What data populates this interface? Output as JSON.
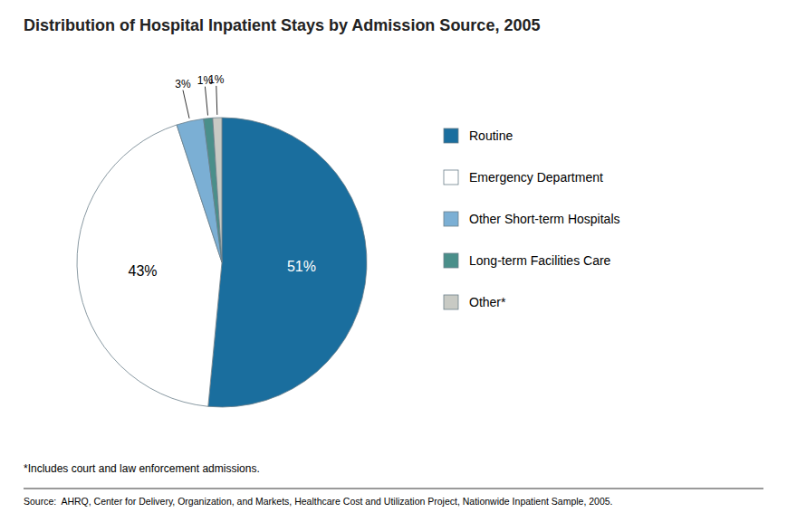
{
  "chart_data": {
    "type": "pie",
    "title": "Distribution of Hospital Inpatient Stays by Admission Source, 2005",
    "categories": [
      "Routine",
      "Emergency Department",
      "Other Short-term Hospitals",
      "Long-term Facilities Care",
      "Other*"
    ],
    "values": [
      51,
      43,
      3,
      1,
      1
    ],
    "value_labels": [
      "51%",
      "43%",
      "3%",
      "1%",
      "1%"
    ],
    "colors": [
      "#1a6e9e",
      "#ffffff",
      "#7bafd4",
      "#4a8f8a",
      "#c8cac4"
    ],
    "data_labels": true,
    "legend": "right",
    "annotations": [
      "*Includes court and law enforcement admissions.",
      "Source:  AHRQ, Center for Delivery, Organization, and Markets, Healthcare Cost and Utilization Project, Nationwide Inpatient Sample, 2005."
    ]
  }
}
